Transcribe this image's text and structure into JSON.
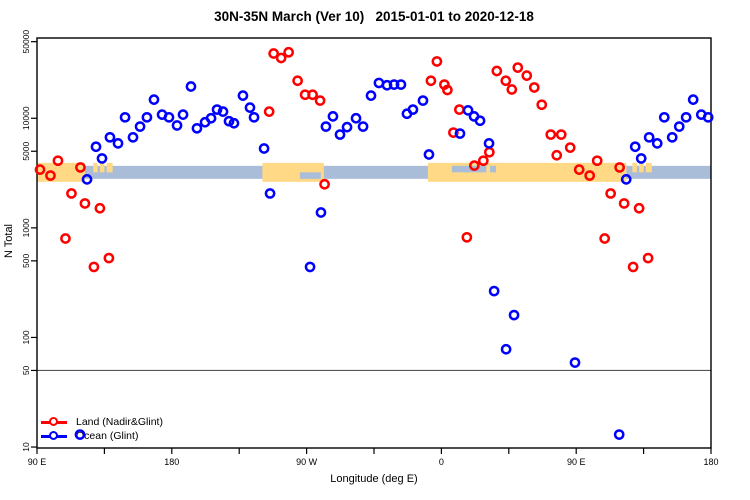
{
  "title": "30N-35N March (Ver 10)   2015-01-01 to 2020-12-18",
  "chart_data": {
    "type": "scatter",
    "title": "30N-35N March (Ver 10)   2015-01-01 to 2020-12-18",
    "xlabel": "Longitude (deg E)",
    "ylabel": "N Total",
    "grid": false,
    "x_axis": {
      "min": 90,
      "max": 540,
      "ticks": [
        {
          "value": 90,
          "label": "90 E"
        },
        {
          "value": 180,
          "label": "180"
        },
        {
          "value": 270,
          "label": "90 W"
        },
        {
          "value": 360,
          "label": "0"
        },
        {
          "value": 450,
          "label": "90 E"
        },
        {
          "value": 540,
          "label": "180"
        }
      ],
      "minor_ticks": [
        135,
        225,
        315,
        405,
        495
      ]
    },
    "y_axis": {
      "scale": "log",
      "min": 9.8,
      "max": 54000,
      "ticks": [
        {
          "value": 50000,
          "label": "50000"
        },
        {
          "value": 10000,
          "label": "10000"
        },
        {
          "value": 5000,
          "label": "5000"
        },
        {
          "value": 1000,
          "label": "1000"
        },
        {
          "value": 500,
          "label": "500"
        },
        {
          "value": 100,
          "label": "100"
        },
        {
          "value": 50,
          "label": "50"
        },
        {
          "value": 10,
          "label": "10"
        }
      ]
    },
    "reference_line": {
      "value": 50,
      "color": "#555555"
    },
    "land_ocean_strip": {
      "description": "coastline strip for 30N-35N latitude band",
      "ocean_color": "#a9bdd9",
      "land_color": "#ffd985",
      "ocean_n_top": 3680,
      "ocean_n_bottom": 2800,
      "land_n_top": 3920,
      "land_n_bottom": 2630,
      "land_segments": [
        {
          "from": 90,
          "to": 122
        },
        {
          "from": 240.5,
          "to": 281.5
        },
        {
          "from": 351,
          "to": 483.5
        }
      ],
      "land_patches_top_half": [
        {
          "from": 127.5,
          "to": 130.5
        },
        {
          "from": 132,
          "to": 135
        },
        {
          "from": 136.5,
          "to": 140.5
        },
        {
          "from": 487.5,
          "to": 490.5
        },
        {
          "from": 492,
          "to": 495
        },
        {
          "from": 496.5,
          "to": 500.5
        }
      ],
      "ocean_notches": [
        {
          "from": 265.5,
          "to": 279.5,
          "part": "bottom"
        },
        {
          "from": 367,
          "to": 390,
          "part": "top"
        },
        {
          "from": 392.5,
          "to": 396.5,
          "part": "top"
        }
      ]
    },
    "series": [
      {
        "name": "Land (Nadir&Glint)",
        "color": "#ff0000",
        "marker": "open-circle",
        "points": [
          [
            92,
            3400
          ],
          [
            99,
            3000
          ],
          [
            104,
            4100
          ],
          [
            109,
            800
          ],
          [
            113,
            2060
          ],
          [
            119,
            3560
          ],
          [
            122,
            1670
          ],
          [
            128,
            440
          ],
          [
            132,
            1510
          ],
          [
            138,
            530
          ],
          [
            245,
            11500
          ],
          [
            248,
            39000
          ],
          [
            253,
            35500
          ],
          [
            258,
            40000
          ],
          [
            264,
            22000
          ],
          [
            269,
            16400
          ],
          [
            274,
            16400
          ],
          [
            279,
            14500
          ],
          [
            282,
            2500
          ],
          [
            353,
            22000
          ],
          [
            357,
            33000
          ],
          [
            362,
            20300
          ],
          [
            364,
            18100
          ],
          [
            368,
            7400
          ],
          [
            372,
            12000
          ],
          [
            377,
            820
          ],
          [
            382,
            3700
          ],
          [
            388,
            4100
          ],
          [
            392,
            4900
          ],
          [
            397,
            27000
          ],
          [
            403,
            22000
          ],
          [
            407,
            18300
          ],
          [
            411,
            29000
          ],
          [
            417,
            24500
          ],
          [
            422,
            19100
          ],
          [
            427,
            13300
          ],
          [
            433,
            7100
          ],
          [
            437,
            4600
          ],
          [
            440,
            7100
          ],
          [
            446,
            5400
          ],
          [
            452,
            3400
          ],
          [
            459,
            3000
          ],
          [
            464,
            4100
          ],
          [
            469,
            800
          ],
          [
            473,
            2060
          ],
          [
            479,
            3560
          ],
          [
            482,
            1670
          ],
          [
            488,
            440
          ],
          [
            492,
            1510
          ],
          [
            498,
            530
          ]
        ]
      },
      {
        "name": "Ocean (Glint)",
        "color": "#0000ff",
        "marker": "open-circle",
        "points": [
          [
            118.7,
            13
          ],
          [
            123.4,
            2770
          ],
          [
            129.4,
            5500
          ],
          [
            133.4,
            4300
          ],
          [
            138.7,
            6700
          ],
          [
            144.1,
            5900
          ],
          [
            148.8,
            10200
          ],
          [
            154.1,
            6700
          ],
          [
            158.8,
            8400
          ],
          [
            163.4,
            10200
          ],
          [
            168.1,
            14800
          ],
          [
            173.5,
            10800
          ],
          [
            178.1,
            10200
          ],
          [
            183.5,
            8600
          ],
          [
            187.5,
            10800
          ],
          [
            192.8,
            19500
          ],
          [
            196.8,
            8100
          ],
          [
            202.2,
            9200
          ],
          [
            206.2,
            10000
          ],
          [
            210.2,
            12000
          ],
          [
            214.2,
            11500
          ],
          [
            218.2,
            9400
          ],
          [
            221.5,
            9000
          ],
          [
            227.5,
            16100
          ],
          [
            232.2,
            12500
          ],
          [
            234.9,
            10200
          ],
          [
            241.6,
            5300
          ],
          [
            245.6,
            2060
          ],
          [
            272.3,
            440
          ],
          [
            279.6,
            1380
          ],
          [
            282.9,
            8400
          ],
          [
            287.6,
            10400
          ],
          [
            292.3,
            7100
          ],
          [
            297,
            8300
          ],
          [
            303,
            10000
          ],
          [
            307.7,
            8400
          ],
          [
            313,
            16100
          ],
          [
            318.3,
            21000
          ],
          [
            323.7,
            20000
          ],
          [
            328.4,
            20300
          ],
          [
            333,
            20300
          ],
          [
            337,
            11000
          ],
          [
            341,
            12000
          ],
          [
            347.7,
            14500
          ],
          [
            351.7,
            4670
          ],
          [
            372.4,
            7250
          ],
          [
            377.8,
            11800
          ],
          [
            381.8,
            10400
          ],
          [
            385.8,
            9500
          ],
          [
            391.8,
            5900
          ],
          [
            395.2,
            265
          ],
          [
            403.2,
            78
          ],
          [
            408.5,
            160
          ],
          [
            449.2,
            59
          ],
          [
            478.7,
            13
          ],
          [
            483.4,
            2770
          ],
          [
            489.4,
            5500
          ],
          [
            493.4,
            4300
          ],
          [
            498.7,
            6700
          ],
          [
            504.1,
            5900
          ],
          [
            508.8,
            10200
          ],
          [
            514.1,
            6700
          ],
          [
            518.8,
            8400
          ],
          [
            523.4,
            10200
          ],
          [
            528.1,
            14800
          ],
          [
            533.5,
            10800
          ],
          [
            538.1,
            10200
          ]
        ]
      }
    ],
    "legend": {
      "position": "bottom-left",
      "entries": [
        {
          "label": "Land (Nadir&Glint)",
          "color": "#ff0000"
        },
        {
          "label": "Ocean (Glint)",
          "color": "#0000ff"
        }
      ]
    }
  },
  "colors": {
    "background": "#ffffff",
    "axis": "#000000",
    "land_point": "#ff0000",
    "ocean_point": "#0000ff",
    "land_strip": "#ffd985",
    "ocean_strip": "#a9bdd9",
    "reference_line": "#555555"
  }
}
